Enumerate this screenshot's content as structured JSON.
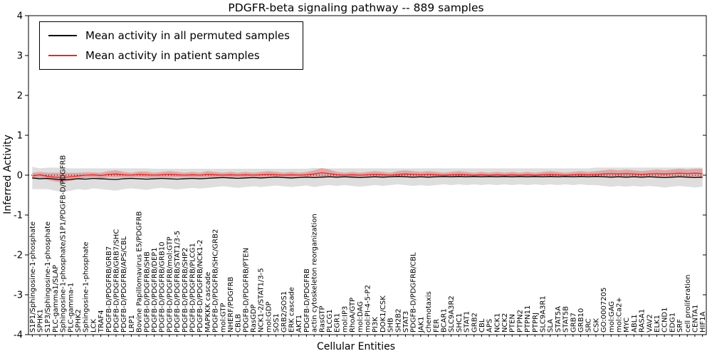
{
  "title": "PDGFR-beta signaling pathway -- 889 samples",
  "xlabel": "Cellular Entities",
  "ylabel": "Inferred Activity",
  "legend": {
    "items": [
      {
        "label": "Mean activity in all permuted samples",
        "color": "#000000"
      },
      {
        "label": "Mean activity in patient samples",
        "color": "#dd2c2c"
      }
    ]
  },
  "chart_data": {
    "type": "line",
    "title": "PDGFR-beta signaling pathway -- 889 samples",
    "xlabel": "Cellular Entities",
    "ylabel": "Inferred Activity",
    "ylim": [
      -4,
      4
    ],
    "y_ticks": [
      -4,
      -3,
      -2,
      -1,
      0,
      1,
      2,
      3,
      4
    ],
    "grid": false,
    "zero_line": true,
    "legend_position": "upper left",
    "categories": [
      "S1P1/Sphingosine-1-phosphate",
      "SPHK1",
      "S1P3/Sphingosine-1-phosphate",
      "PLC-gamma1/SLAP",
      "Sphingosine-1-phosphate/S1P1/PDGFB-D/PDGFRB",
      "PLC-gamma-1",
      "SPHK2",
      "Sphingosine-1-phosphate",
      "LCK",
      "TRAF4",
      "PDGFB-D/PDGFRB/GRB7",
      "PDGFB-D/PDGFRB/GRB7/SHC",
      "PDGFB-D/PDGFRB/APS/CBL",
      "LRP1",
      "Bovine Papillomavirus E5/PDGFRB",
      "PDGFB-D/PDGFRB/SHB",
      "PDGFB-D/PDGFRB/DEP1",
      "PDGFB-D/PDGFRB/GRB10",
      "PDGFB-D/PDGFRB/mol:GTP",
      "PDGFB-D/PDGFRB/STAT1/3-5",
      "PDGFB-D/PDGFRB/SHP2",
      "PDGFB-D/PDGFRB/PLCG1",
      "PDGFB-D/PDGFRB/NCK1-2",
      "MAPKKK cascade",
      "PDGFB-D/PDGFRB/SHC/GRB2",
      "mol:GTP",
      "NHERF/PDGFRB",
      "CBLB",
      "PDGFB-D/PDGFRB/PTEN",
      "RasGDP",
      "NCK1-2/STAT1/3-5",
      "mol:GDP",
      "SOS1",
      "GRB2/SOS1",
      "ERK cascade",
      "AKT1",
      "PDGFB-D/PDGFRB",
      "actin cytoskeleton reorganization",
      "RasGTP",
      "PLCG1",
      "EGR1",
      "mol:IP3",
      "RhoA/GTP",
      "mol:DAG",
      "mol:PI-4-5-P2",
      "PI3K",
      "DOK1/CSK",
      "SHB",
      "SH2B2",
      "STAT3",
      "PDGFB-D/PDGFRB/CBL",
      "JAK1",
      "chemotaxis",
      "FER",
      "BCAR1",
      "SLC9A3R2",
      "SHC1",
      "STAT1",
      "GRB2",
      "CBL",
      "APS",
      "NCK1",
      "NCK2",
      "PTEN",
      "PTPN2",
      "PTPN11",
      "PTPRJ",
      "SLC9A3R1",
      "SLA",
      "STAT5A",
      "STAT5B",
      "GRB7",
      "GRB10",
      "SRC",
      "CSK",
      "GO:0007205",
      "mol:GAG",
      "mol:Ca2+",
      "MYC",
      "ABL1",
      "RASA1",
      "VAV2",
      "ELK1",
      "CCND1",
      "EDG1",
      "SRF",
      "cell proliferation",
      "CENTA1",
      "HIF1A"
    ],
    "series": [
      {
        "name": "Mean activity in all permuted samples",
        "color": "#000000",
        "band_color": "#c8c8c8",
        "band_opacity": 0.6,
        "values": [
          -0.07,
          -0.09,
          -0.08,
          -0.1,
          -0.12,
          -0.11,
          -0.09,
          -0.1,
          -0.08,
          -0.09,
          -0.1,
          -0.11,
          -0.09,
          -0.08,
          -0.09,
          -0.1,
          -0.09,
          -0.08,
          -0.09,
          -0.1,
          -0.09,
          -0.08,
          -0.09,
          -0.08,
          -0.07,
          -0.06,
          -0.07,
          -0.08,
          -0.07,
          -0.06,
          -0.07,
          -0.06,
          -0.05,
          -0.06,
          -0.07,
          -0.06,
          -0.05,
          -0.06,
          -0.05,
          -0.04,
          -0.05,
          -0.04,
          -0.05,
          -0.06,
          -0.05,
          -0.04,
          -0.05,
          -0.04,
          -0.03,
          -0.04,
          -0.05,
          -0.04,
          -0.05,
          -0.04,
          -0.03,
          -0.04,
          -0.03,
          -0.04,
          -0.03,
          -0.04,
          -0.03,
          -0.04,
          -0.03,
          -0.04,
          -0.03,
          -0.04,
          -0.03,
          -0.04,
          -0.03,
          -0.04,
          -0.03,
          -0.04,
          -0.03,
          -0.04,
          -0.03,
          -0.04,
          -0.05,
          -0.04,
          -0.05,
          -0.04,
          -0.05,
          -0.04,
          -0.05,
          -0.06,
          -0.05,
          -0.04,
          -0.05,
          -0.06,
          -0.05
        ],
        "band_halfwidth": [
          0.28,
          0.26,
          0.27,
          0.29,
          0.3,
          0.28,
          0.26,
          0.27,
          0.25,
          0.26,
          0.27,
          0.28,
          0.26,
          0.25,
          0.26,
          0.27,
          0.25,
          0.24,
          0.25,
          0.26,
          0.25,
          0.24,
          0.25,
          0.24,
          0.23,
          0.22,
          0.23,
          0.24,
          0.23,
          0.22,
          0.23,
          0.22,
          0.21,
          0.22,
          0.23,
          0.22,
          0.21,
          0.24,
          0.22,
          0.21,
          0.22,
          0.21,
          0.22,
          0.23,
          0.22,
          0.21,
          0.22,
          0.21,
          0.2,
          0.21,
          0.22,
          0.21,
          0.22,
          0.21,
          0.2,
          0.21,
          0.2,
          0.21,
          0.2,
          0.21,
          0.2,
          0.21,
          0.2,
          0.21,
          0.2,
          0.21,
          0.2,
          0.21,
          0.2,
          0.21,
          0.2,
          0.21,
          0.2,
          0.21,
          0.22,
          0.23,
          0.24,
          0.23,
          0.24,
          0.23,
          0.24,
          0.23,
          0.24,
          0.25,
          0.24,
          0.23,
          0.24,
          0.25,
          0.24
        ]
      },
      {
        "name": "Mean activity in patient samples",
        "color": "#dd2c2c",
        "band_color": "#e86060",
        "band_opacity": 0.45,
        "values": [
          -0.02,
          0.01,
          -0.03,
          -0.05,
          -0.06,
          -0.04,
          -0.02,
          0.0,
          0.01,
          -0.01,
          0.02,
          0.03,
          0.01,
          0.0,
          0.02,
          0.01,
          0.0,
          0.01,
          0.02,
          0.01,
          0.0,
          0.01,
          0.0,
          0.02,
          0.01,
          0.0,
          0.01,
          0.0,
          0.01,
          0.0,
          0.01,
          0.02,
          0.01,
          0.0,
          0.01,
          0.0,
          0.01,
          0.03,
          0.06,
          0.04,
          0.01,
          0.0,
          0.01,
          0.0,
          0.01,
          0.02,
          0.01,
          0.0,
          0.02,
          0.03,
          0.02,
          0.01,
          0.02,
          0.01,
          0.0,
          0.01,
          0.02,
          0.01,
          0.0,
          0.01,
          0.0,
          0.01,
          0.0,
          0.01,
          0.0,
          0.01,
          0.0,
          0.01,
          0.02,
          0.01,
          0.0,
          0.01,
          0.02,
          0.01,
          0.02,
          0.03,
          0.04,
          0.03,
          0.04,
          0.03,
          0.02,
          0.03,
          0.04,
          0.03,
          0.04,
          0.05,
          0.04,
          0.05,
          0.04
        ],
        "band_halfwidth": [
          0.08,
          0.07,
          0.09,
          0.11,
          0.12,
          0.1,
          0.08,
          0.07,
          0.06,
          0.07,
          0.08,
          0.09,
          0.07,
          0.06,
          0.07,
          0.08,
          0.06,
          0.07,
          0.08,
          0.07,
          0.06,
          0.07,
          0.06,
          0.08,
          0.07,
          0.06,
          0.07,
          0.06,
          0.07,
          0.06,
          0.07,
          0.08,
          0.07,
          0.06,
          0.07,
          0.06,
          0.07,
          0.09,
          0.12,
          0.1,
          0.07,
          0.06,
          0.07,
          0.06,
          0.07,
          0.08,
          0.07,
          0.06,
          0.08,
          0.09,
          0.08,
          0.07,
          0.08,
          0.07,
          0.06,
          0.07,
          0.08,
          0.07,
          0.06,
          0.07,
          0.06,
          0.07,
          0.06,
          0.07,
          0.06,
          0.07,
          0.06,
          0.07,
          0.08,
          0.07,
          0.06,
          0.07,
          0.08,
          0.07,
          0.08,
          0.09,
          0.1,
          0.09,
          0.1,
          0.09,
          0.08,
          0.09,
          0.1,
          0.09,
          0.1,
          0.11,
          0.1,
          0.11,
          0.12
        ]
      }
    ]
  }
}
